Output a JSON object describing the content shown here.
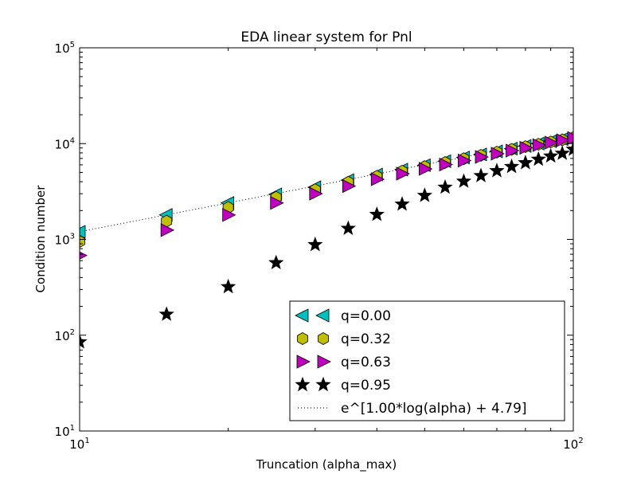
{
  "chart_data": {
    "type": "scatter",
    "title": "EDA linear system for Pnl",
    "xlabel": "Truncation (alpha_max)",
    "ylabel": "Condition number",
    "xscale": "log",
    "yscale": "log",
    "xlim": [
      10,
      100
    ],
    "ylim": [
      10,
      100000
    ],
    "grid": false,
    "legend_position": "lower-right",
    "x_ticks": [
      {
        "base": "10",
        "exp": "1"
      },
      {
        "base": "10",
        "exp": "2"
      }
    ],
    "y_ticks": [
      {
        "base": "10",
        "exp": "1"
      },
      {
        "base": "10",
        "exp": "2"
      },
      {
        "base": "10",
        "exp": "3"
      },
      {
        "base": "10",
        "exp": "4"
      },
      {
        "base": "10",
        "exp": "5"
      }
    ],
    "x": [
      10,
      15,
      20,
      25,
      30,
      35,
      40,
      45,
      50,
      55,
      60,
      65,
      70,
      75,
      80,
      85,
      90,
      95,
      100
    ],
    "series": [
      {
        "name": "q=0.00",
        "marker": "triangle-left",
        "color": "#00bfbf",
        "values": [
          1200,
          1800,
          2400,
          2950,
          3500,
          4150,
          4750,
          5350,
          5950,
          6550,
          7150,
          7700,
          8300,
          8850,
          9450,
          10000,
          10600,
          11150,
          11750
        ]
      },
      {
        "name": "q=0.32",
        "marker": "hexagon",
        "color": "#bfbf00",
        "values": [
          950,
          1550,
          2150,
          2750,
          3300,
          3950,
          4550,
          5150,
          5750,
          6350,
          6950,
          7550,
          8150,
          8700,
          9300,
          9850,
          10400,
          10950,
          11550
        ]
      },
      {
        "name": "q=0.63",
        "marker": "triangle-right",
        "color": "#bf00bf",
        "values": [
          680,
          1250,
          1800,
          2400,
          3000,
          3600,
          4250,
          4850,
          5450,
          6050,
          6650,
          7250,
          7850,
          8450,
          9050,
          9650,
          10250,
          10850,
          11450
        ]
      },
      {
        "name": "q=0.95",
        "marker": "star",
        "color": "#000000",
        "values": [
          85,
          165,
          320,
          570,
          880,
          1300,
          1820,
          2330,
          2870,
          3500,
          4040,
          4620,
          5200,
          5750,
          6300,
          6850,
          7400,
          7900,
          8700
        ]
      }
    ],
    "fit_line": {
      "name": "e^[1.00*log(alpha) + 4.79]",
      "style": "dotted",
      "color": "#000000",
      "slope": 1.0,
      "intercept": 4.79
    }
  }
}
